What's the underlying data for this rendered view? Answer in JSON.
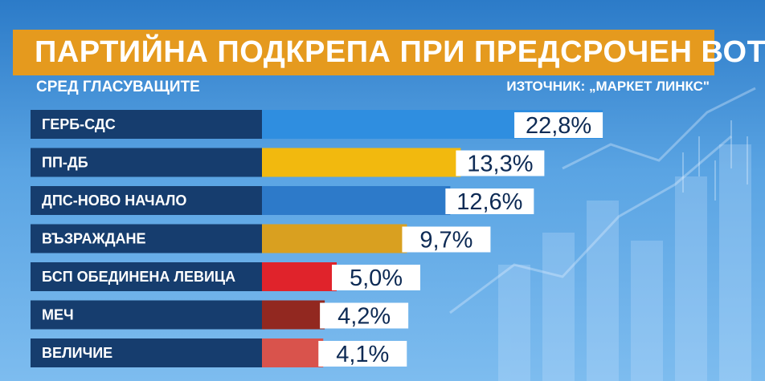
{
  "header": {
    "title": "ПАРТИЙНА ПОДКРЕПА ПРИ ПРЕДСРОЧЕН ВОТ",
    "subtitle": "СРЕД ГЛАСУВАЩИТЕ",
    "source": "ИЗТОЧНИК: „МАРКЕТ ЛИНКС\""
  },
  "colors": {
    "title_bg": "#e59a1e",
    "label_bg": "#163d6e",
    "value_bg": "#ffffff",
    "value_text": "#0d2a54"
  },
  "chart_data": {
    "type": "bar",
    "orientation": "horizontal",
    "title": "ПАРТИЙНА ПОДКРЕПА ПРИ ПРЕДСРОЧЕН ВОТ",
    "subtitle": "СРЕД ГЛАСУВАЩИТЕ",
    "categories": [
      "ГЕРБ-СДС",
      "ПП-ДБ",
      "ДПС-НОВО НАЧАЛО",
      "ВЪЗРАЖДАНЕ",
      "БСП ОБЕДИНЕНА ЛЕВИЦА",
      "МЕЧ",
      "ВЕЛИЧИЕ"
    ],
    "values": [
      22.8,
      13.3,
      12.6,
      9.7,
      5.0,
      4.2,
      4.1
    ],
    "value_labels": [
      "22,8%",
      "13,3%",
      "12,6%",
      "9,7%",
      "5,0%",
      "4,2%",
      "4,1%"
    ],
    "bar_colors": [
      "#2f8ee0",
      "#f2b90e",
      "#2d7ac9",
      "#d9a020",
      "#e0232b",
      "#922820",
      "#d9534c"
    ],
    "unit": "%",
    "grid": false,
    "legend": "none"
  }
}
